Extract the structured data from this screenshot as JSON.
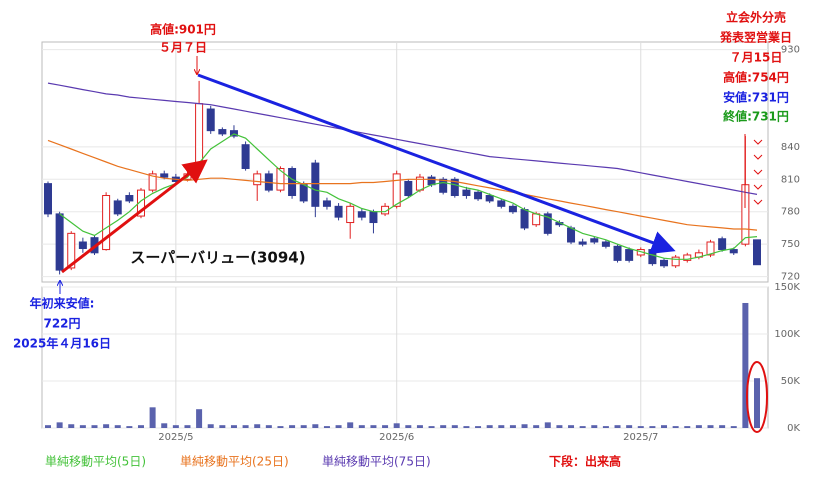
{
  "chart_data": {
    "type": "candlestick",
    "categories": [
      null,
      null,
      null,
      null,
      null,
      null,
      null,
      null,
      null,
      null,
      null,
      "2025/5",
      null,
      null,
      null,
      null,
      null,
      null,
      null,
      null,
      null,
      null,
      null,
      null,
      null,
      null,
      null,
      null,
      null,
      null,
      "2025/6",
      null,
      null,
      null,
      null,
      null,
      null,
      null,
      null,
      null,
      null,
      null,
      null,
      null,
      null,
      null,
      null,
      null,
      null,
      null,
      null,
      "2025/7",
      null,
      null,
      null,
      null,
      null,
      null,
      null,
      null,
      null,
      null
    ],
    "ohlc": {
      "up_color": "#e02020",
      "down_color": "#2e3a92",
      "open": [
        806,
        778,
        728,
        752,
        756,
        745,
        790,
        795,
        776,
        800,
        815,
        812,
        810,
        820,
        875,
        856,
        855,
        842,
        805,
        815,
        800,
        820,
        805,
        825,
        790,
        785,
        770,
        780,
        780,
        778,
        785,
        808,
        800,
        812,
        810,
        810,
        800,
        798,
        795,
        790,
        785,
        782,
        768,
        778,
        770,
        765,
        752,
        755,
        752,
        748,
        745,
        740,
        745,
        735,
        730,
        735,
        738,
        740,
        755,
        745,
        750,
        754
      ],
      "high": [
        808,
        780,
        762,
        756,
        758,
        798,
        792,
        798,
        802,
        818,
        818,
        815,
        818,
        901,
        878,
        858,
        860,
        845,
        818,
        818,
        822,
        822,
        808,
        828,
        793,
        788,
        788,
        783,
        782,
        788,
        818,
        810,
        815,
        814,
        812,
        812,
        803,
        800,
        797,
        792,
        787,
        784,
        780,
        780,
        772,
        767,
        755,
        757,
        754,
        750,
        747,
        747,
        747,
        737,
        740,
        742,
        745,
        754,
        757,
        747,
        850,
        754
      ],
      "low": [
        775,
        722,
        726,
        742,
        740,
        744,
        776,
        788,
        774,
        798,
        810,
        806,
        808,
        818,
        852,
        850,
        848,
        818,
        790,
        798,
        798,
        792,
        788,
        775,
        782,
        772,
        755,
        772,
        760,
        776,
        783,
        793,
        798,
        803,
        796,
        793,
        792,
        790,
        788,
        783,
        778,
        763,
        766,
        758,
        766,
        750,
        748,
        750,
        746,
        733,
        733,
        738,
        730,
        728,
        728,
        733,
        736,
        738,
        743,
        740,
        748,
        731
      ],
      "close": [
        778,
        726,
        760,
        746,
        742,
        795,
        778,
        790,
        800,
        815,
        812,
        808,
        815,
        880,
        855,
        852,
        850,
        820,
        815,
        800,
        820,
        795,
        790,
        785,
        785,
        775,
        785,
        775,
        770,
        785,
        815,
        795,
        812,
        805,
        798,
        795,
        795,
        792,
        790,
        785,
        780,
        765,
        778,
        760,
        768,
        752,
        750,
        752,
        748,
        735,
        735,
        745,
        732,
        730,
        738,
        740,
        742,
        752,
        745,
        742,
        805,
        731
      ]
    },
    "moving_averages": [
      {
        "name": "単純移動平均(5日)",
        "color": "#44c23a",
        "values": [
          null,
          778,
          770,
          762,
          758,
          765,
          772,
          780,
          790,
          797,
          802,
          806,
          812,
          825,
          838,
          845,
          852,
          848,
          838,
          828,
          818,
          810,
          805,
          800,
          798,
          792,
          788,
          783,
          780,
          780,
          787,
          793,
          800,
          805,
          807,
          805,
          802,
          800,
          796,
          792,
          788,
          782,
          778,
          775,
          770,
          765,
          760,
          757,
          754,
          750,
          746,
          743,
          740,
          737,
          736,
          736,
          738,
          741,
          744,
          746,
          756,
          757
        ]
      },
      {
        "name": "単純移動平均(25日)",
        "color": "#e8731e",
        "values": [
          846,
          842,
          838,
          834,
          830,
          826,
          822,
          819,
          816,
          813,
          811,
          810,
          809,
          810,
          811,
          811,
          810,
          809,
          808,
          807,
          806,
          806,
          806,
          806,
          806,
          806,
          806,
          807,
          807,
          808,
          809,
          810,
          810,
          810,
          809,
          808,
          806,
          804,
          802,
          800,
          798,
          796,
          794,
          792,
          790,
          788,
          786,
          784,
          782,
          780,
          778,
          776,
          774,
          772,
          770,
          768,
          767,
          766,
          765,
          764,
          764,
          763
        ]
      },
      {
        "name": "単純移動平均(75日)",
        "color": "#5a3ab0",
        "values": [
          899,
          897,
          895,
          893,
          891,
          889,
          888,
          886,
          885,
          884,
          883,
          882,
          881,
          880,
          879,
          877,
          875,
          873,
          871,
          869,
          867,
          865,
          863,
          861,
          859,
          857,
          855,
          853,
          851,
          849,
          847,
          845,
          843,
          841,
          839,
          837,
          835,
          833,
          831,
          830,
          829,
          828,
          827,
          826,
          825,
          824,
          823,
          822,
          821,
          820,
          818,
          816,
          814,
          812,
          810,
          808,
          806,
          804,
          802,
          800,
          798,
          796
        ]
      }
    ],
    "ylim": [
      715,
      937
    ],
    "yticks": [
      720,
      750,
      780,
      810,
      840,
      930
    ],
    "volume": {
      "color": "#5a62ad",
      "values": [
        3000,
        6000,
        4000,
        3000,
        3000,
        4000,
        3000,
        2000,
        3000,
        22000,
        5000,
        3000,
        3000,
        20000,
        4000,
        3000,
        3000,
        3000,
        4000,
        3000,
        2000,
        3000,
        3000,
        4000,
        2000,
        3000,
        6000,
        3000,
        3000,
        3000,
        5000,
        3000,
        3000,
        2000,
        3000,
        3000,
        2000,
        2000,
        3000,
        3000,
        3000,
        4000,
        3000,
        6000,
        3000,
        3000,
        2000,
        3000,
        2000,
        3000,
        3000,
        2000,
        2000,
        3000,
        2000,
        2000,
        3000,
        3000,
        3000,
        2000,
        133000,
        53000
      ],
      "ylim": [
        0,
        150000
      ],
      "yticks": [
        {
          "value": 0,
          "label": "0K"
        },
        {
          "value": 50000,
          "label": "50K"
        },
        {
          "value": 100000,
          "label": "100K"
        },
        {
          "value": 150000,
          "label": "150K"
        }
      ]
    },
    "grid": true,
    "annotations": {
      "high": [
        "高値:901円",
        "５月７日"
      ],
      "offering": [
        "立会外分売",
        "発表翌営業日",
        "７月15日"
      ],
      "day_high": "高値:754円",
      "day_low": "安値:731円",
      "day_close": "終値:731円",
      "year_low": [
        "年初来安値:",
        "722円",
        "2025年４月16日"
      ],
      "name": "スーパーバリュー(3094)",
      "volume_note": "下段：出来高"
    }
  }
}
